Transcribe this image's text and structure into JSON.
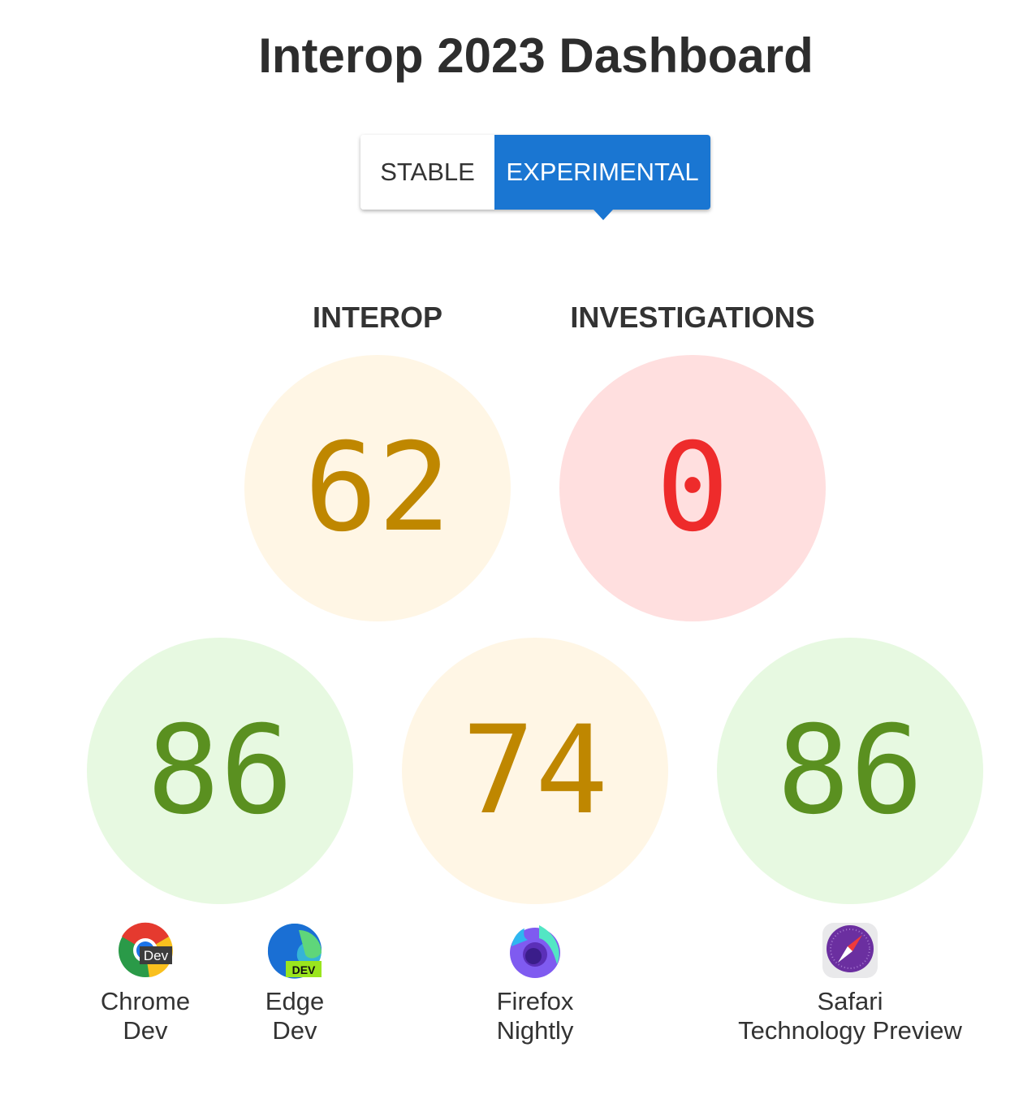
{
  "title": "Interop 2023 Dashboard",
  "toggle": {
    "stable": "STABLE",
    "experimental": "EXPERIMENTAL",
    "selected": "experimental",
    "accent": "#1a76d2"
  },
  "summary": {
    "interop": {
      "label": "INTEROP",
      "score": "62"
    },
    "investigations": {
      "label": "INVESTIGATIONS",
      "score": "0"
    }
  },
  "browsers": [
    {
      "line1": "Chrome",
      "line2": "Dev",
      "icon": "chrome-dev-icon",
      "icon_text": "Dev"
    },
    {
      "line1": "Edge",
      "line2": "Dev",
      "icon": "edge-dev-icon",
      "icon_text": "DEV"
    },
    {
      "line1": "Firefox",
      "line2": "Nightly",
      "icon": "firefox-nightly-icon"
    },
    {
      "line1": "Safari",
      "line2": "Technology Preview",
      "icon": "safari-technology-preview-icon"
    }
  ],
  "scores": {
    "chrome_edge": "86",
    "firefox": "74",
    "safari": "86"
  },
  "colors": {
    "yellow_bg": "#fff6e5",
    "yellow_text": "#bf8700",
    "red_bg": "#ffdfdf",
    "red_text": "#ee2b2b",
    "green_bg": "#e7f9e1",
    "green_text": "#5a9020"
  }
}
